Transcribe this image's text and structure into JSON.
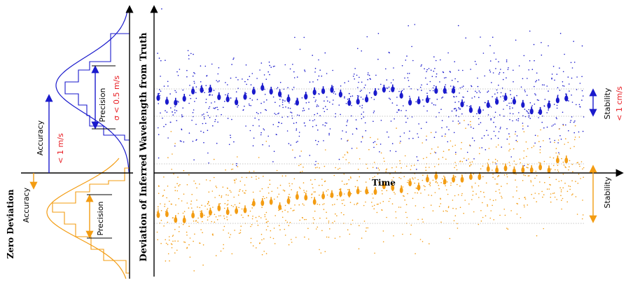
{
  "labels": {
    "zero_deviation": "Zero Deviation",
    "y_axis": "Deviation of Inferred Wavelength from Truth",
    "x_axis": "Time",
    "accuracy_blue": "Accuracy",
    "accuracy_blue_value": "< 1 m/s",
    "precision_blue": "Precision",
    "precision_blue_value": "σ < 0.5 m/s",
    "accuracy_orange": "Accuracy",
    "precision_orange": "Precision",
    "stability_blue": "Stability",
    "stability_blue_value": "< 1 cm/s",
    "stability_orange": "Stability"
  },
  "colors": {
    "blue": "#1a1acc",
    "orange": "#f39c12",
    "red": "#e8191f",
    "axis": "#000000",
    "grid": "#b5b5b5"
  }
}
